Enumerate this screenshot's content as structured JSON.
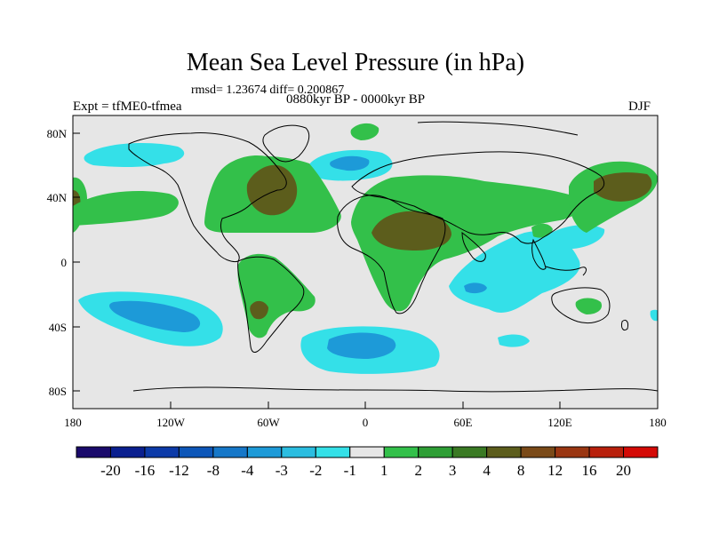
{
  "title": "Mean Sea Level Pressure (in hPa)",
  "stats": "rmsd= 1.23674 diff= 0.200867",
  "experiment": "Expt = tfME0-tfmea",
  "period": "0880kyr BP - 0000kyr BP",
  "season": "DJF",
  "lat_ticks": [
    "80N",
    "40N",
    "0",
    "40S",
    "80S"
  ],
  "lon_ticks": [
    "180",
    "120W",
    "60W",
    "0",
    "60E",
    "120E",
    "180"
  ],
  "colorbar": {
    "colors": [
      "#1a0a6b",
      "#0a1f8f",
      "#0c3aa8",
      "#0d56b8",
      "#1677c8",
      "#1d9ad8",
      "#2bbde0",
      "#34e0e8",
      "#e6e6e6",
      "#33c04a",
      "#2e9e35",
      "#3a7a24",
      "#5c5d1c",
      "#7a4a18",
      "#9a3612",
      "#b8200c",
      "#d40a06"
    ],
    "labels": [
      "-20",
      "-16",
      "-12",
      "-8",
      "-4",
      "-3",
      "-2",
      "-1",
      "1",
      "2",
      "3",
      "4",
      "8",
      "12",
      "16",
      "20"
    ]
  },
  "colors": {
    "ocean_background": "#e6e6e6",
    "neg1": "#34e0e8",
    "neg2": "#1d9ad8",
    "neg3": "#1677c8",
    "neg4": "#0c3aa8",
    "pos1": "#33c04a",
    "pos2": "#2e9e35",
    "pos3": "#5c5d1c"
  }
}
